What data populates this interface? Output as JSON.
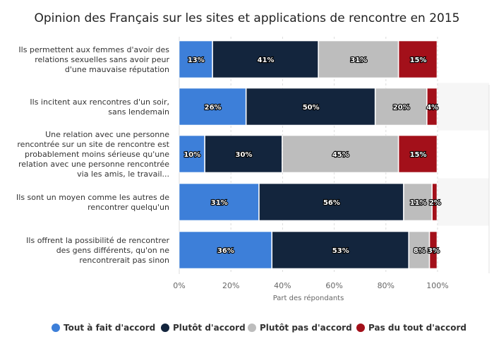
{
  "chart_data": {
    "type": "bar",
    "orientation": "horizontal",
    "stacked": true,
    "title": "Opinion des Français sur les sites et applications de rencontre en 2015",
    "xlabel": "Part des répondants",
    "ylabel": "",
    "xlim": [
      0,
      100
    ],
    "ticks": [
      "0%",
      "20%",
      "40%",
      "60%",
      "80%",
      "100%"
    ],
    "categories": [
      [
        "Ils permettent aux femmes d'avoir des",
        "relations sexuelles sans avoir peur",
        "d'une mauvaise réputation"
      ],
      [
        "Ils incitent aux rencontres d'un soir,",
        "sans lendemain"
      ],
      [
        "Une relation avec une personne",
        "rencontrée sur un site de rencontre est",
        "probablement moins sérieuse qu'une",
        "relation avec une personne rencontrée",
        "via les amis, le travail..."
      ],
      [
        "Ils sont un moyen comme les autres de",
        "rencontrer quelqu'un"
      ],
      [
        "Ils offrent la possibilité de rencontrer",
        "des gens différents, qu'on ne",
        "rencontrerait pas sinon"
      ]
    ],
    "series": [
      {
        "name": "Tout à fait d'accord",
        "color": "#3d7fd9",
        "values": [
          13,
          26,
          10,
          31,
          36
        ]
      },
      {
        "name": "Plutôt d'accord",
        "color": "#13253d",
        "values": [
          41,
          50,
          30,
          56,
          53
        ]
      },
      {
        "name": "Plutôt pas d'accord",
        "color": "#bdbdbd",
        "values": [
          31,
          20,
          45,
          11,
          8
        ]
      },
      {
        "name": "Pas du tout d'accord",
        "color": "#a3101a",
        "values": [
          15,
          4,
          15,
          2,
          3
        ]
      }
    ],
    "legend_position": "bottom"
  }
}
